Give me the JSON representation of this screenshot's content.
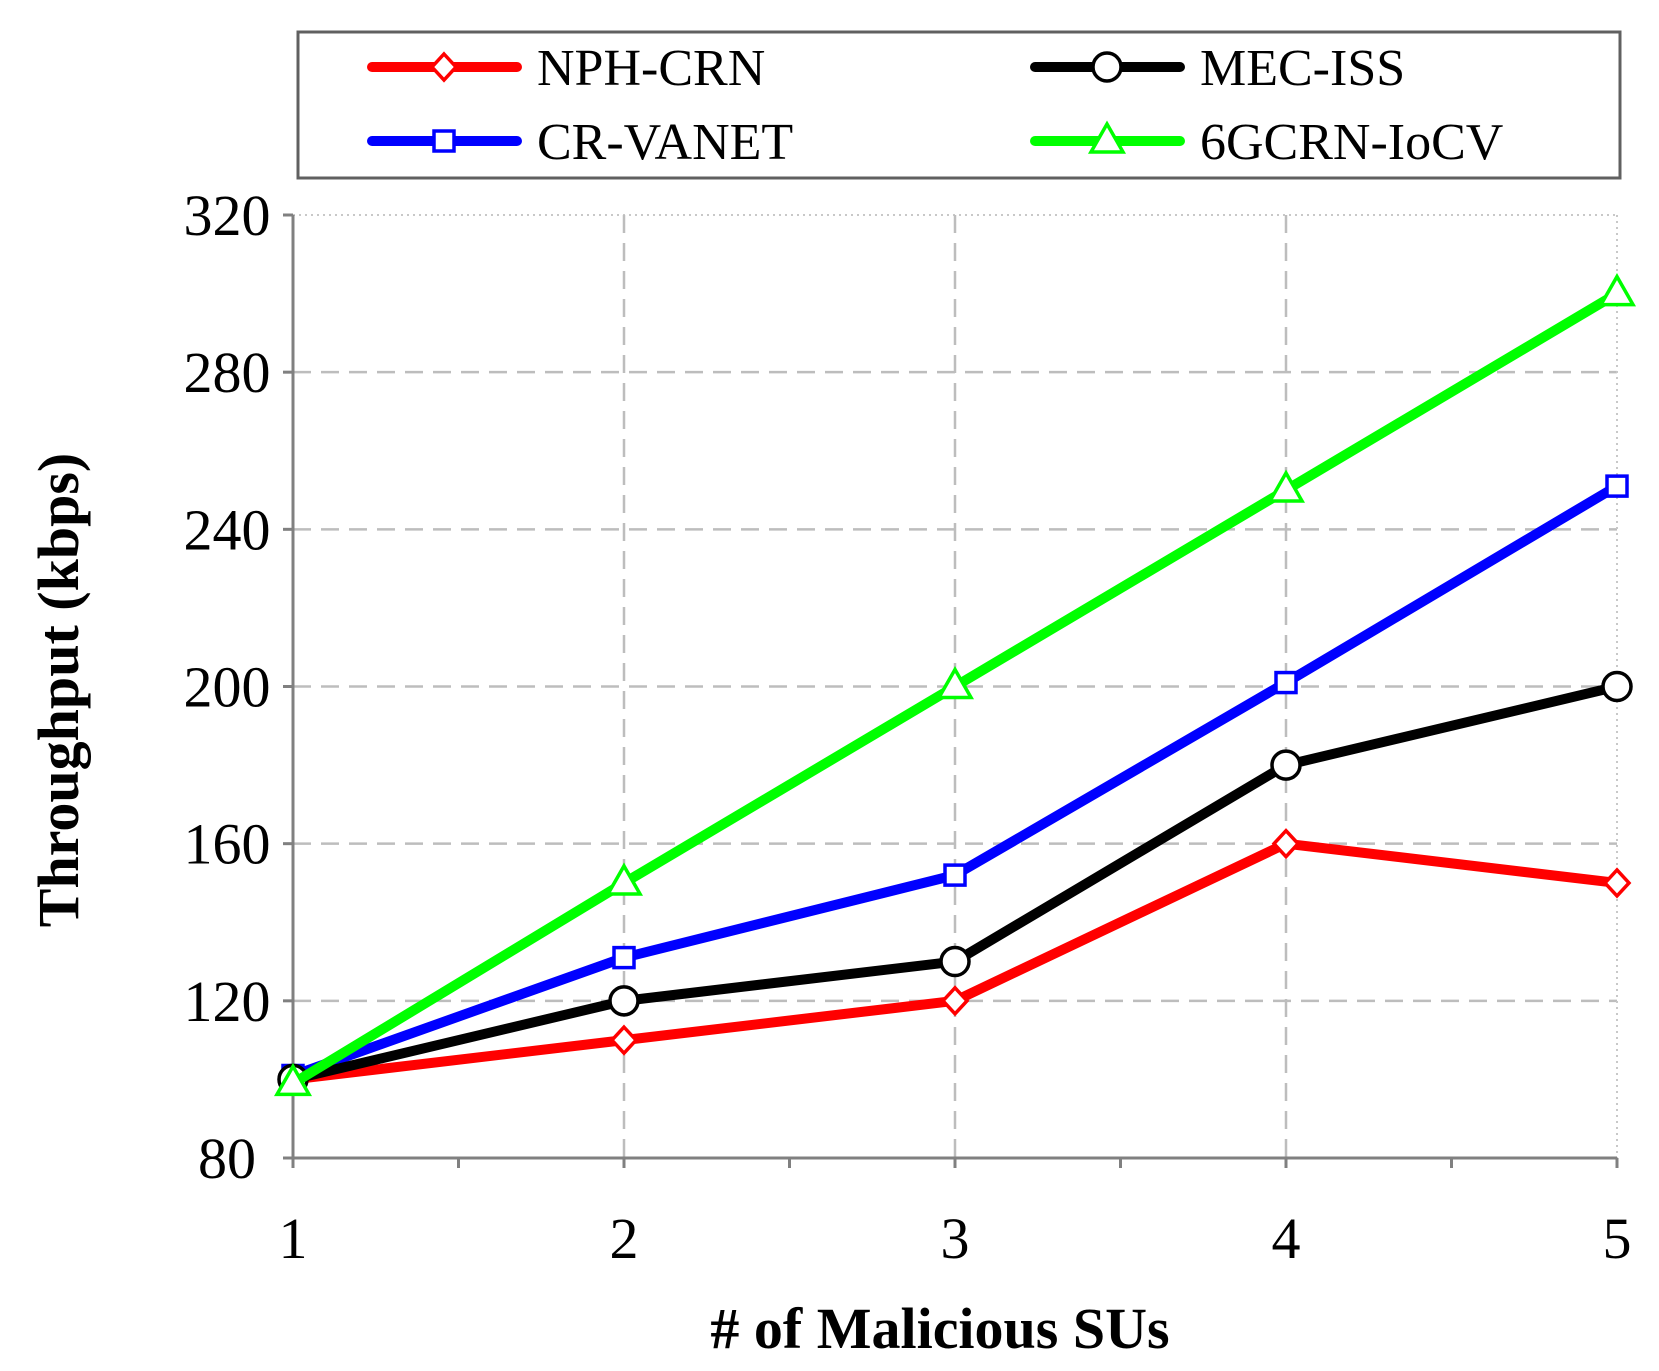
{
  "chart_data": {
    "type": "line",
    "title": "",
    "xlabel": "# of Malicious SUs",
    "ylabel": "Throughput (kbps)",
    "x": [
      1,
      2,
      3,
      4,
      5
    ],
    "x_tick_labels": [
      "1",
      "2",
      "3",
      "4",
      "5"
    ],
    "xlim": [
      1,
      5
    ],
    "ylim": [
      80,
      320
    ],
    "y_ticks": [
      80,
      120,
      160,
      200,
      240,
      280,
      320
    ],
    "y_tick_labels": [
      "80",
      "120",
      "160",
      "200",
      "240",
      "280",
      "320"
    ],
    "grid": true,
    "legend_position": "top",
    "series": [
      {
        "name": "NPH-CRN",
        "color": "#ff0000",
        "marker": "diamond",
        "values": [
          100,
          110,
          120,
          160,
          150
        ]
      },
      {
        "name": "MEC-ISS",
        "color": "#000000",
        "marker": "circle",
        "values": [
          100,
          120,
          130,
          180,
          200
        ]
      },
      {
        "name": "CR-VANET",
        "color": "#0000ff",
        "marker": "square",
        "values": [
          101,
          131,
          152,
          201,
          251
        ]
      },
      {
        "name": "6GCRN-IoCV",
        "color": "#00ff00",
        "marker": "triangle",
        "values": [
          99,
          150,
          200,
          250,
          300
        ]
      }
    ]
  }
}
